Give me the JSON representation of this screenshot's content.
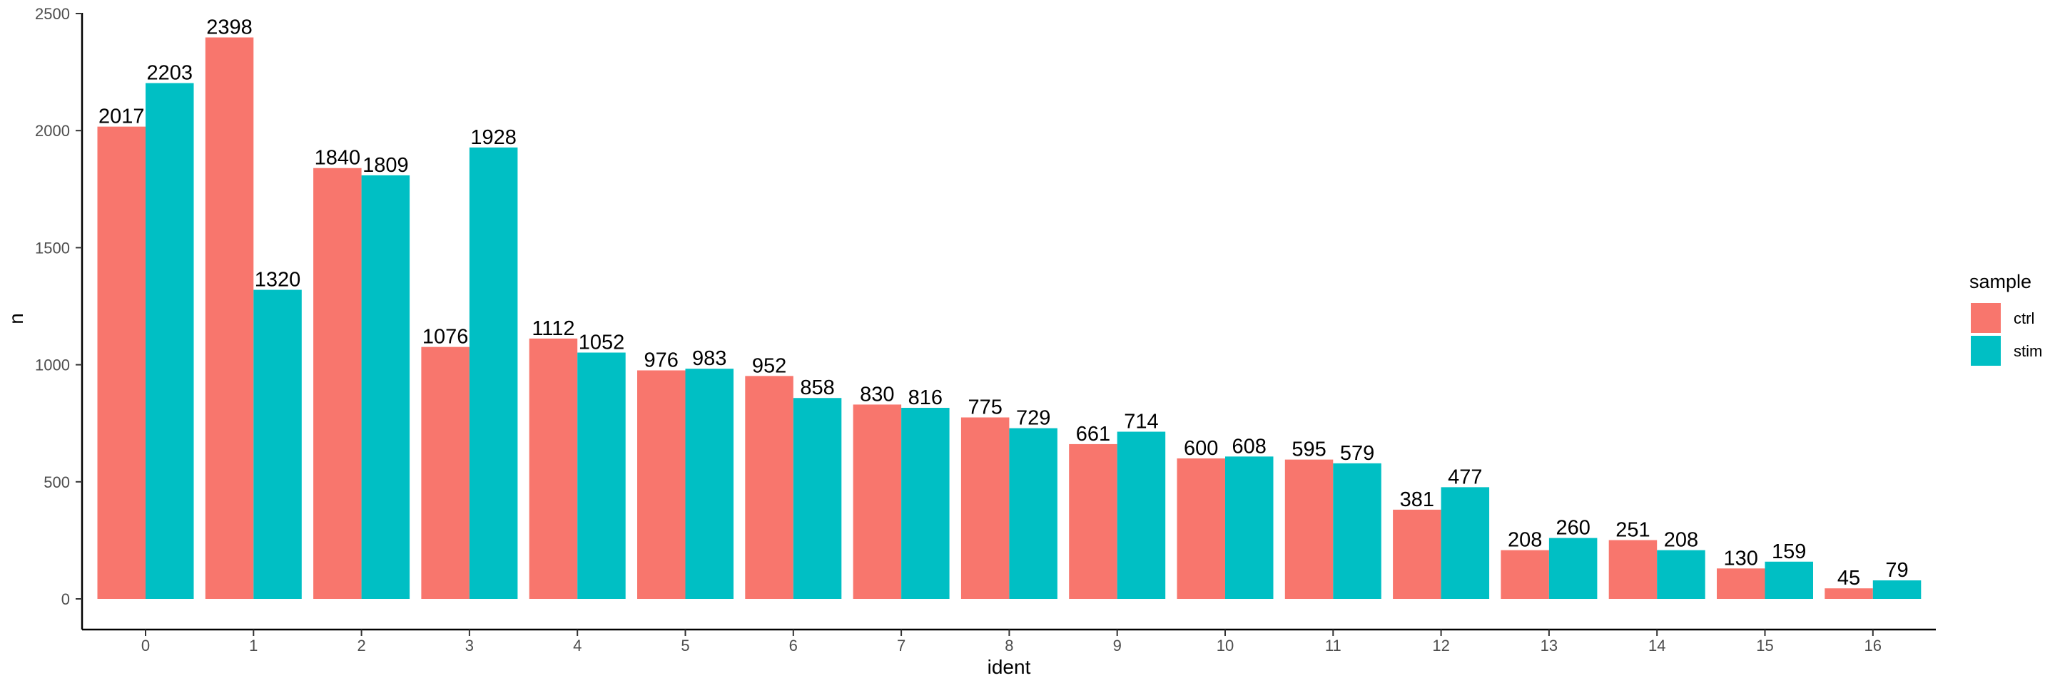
{
  "chart_data": {
    "type": "bar",
    "title": "",
    "xlabel": "ident",
    "ylabel": "n",
    "ylim": [
      0,
      2500
    ],
    "yticks": [
      0,
      500,
      1000,
      1500,
      2000,
      2500
    ],
    "grid": false,
    "legend_placement": "right",
    "legend_title": "sample",
    "categories": [
      "0",
      "1",
      "2",
      "3",
      "4",
      "5",
      "6",
      "7",
      "8",
      "9",
      "10",
      "11",
      "12",
      "13",
      "14",
      "15",
      "16"
    ],
    "series": [
      {
        "name": "ctrl",
        "color": "#F8766D",
        "values": [
          2017,
          2398,
          1840,
          1076,
          1112,
          976,
          952,
          830,
          775,
          661,
          600,
          595,
          381,
          208,
          251,
          130,
          45
        ]
      },
      {
        "name": "stim",
        "color": "#00BFC4",
        "values": [
          2203,
          1320,
          1809,
          1928,
          1052,
          983,
          858,
          816,
          729,
          714,
          608,
          579,
          477,
          260,
          208,
          159,
          79
        ]
      }
    ]
  }
}
